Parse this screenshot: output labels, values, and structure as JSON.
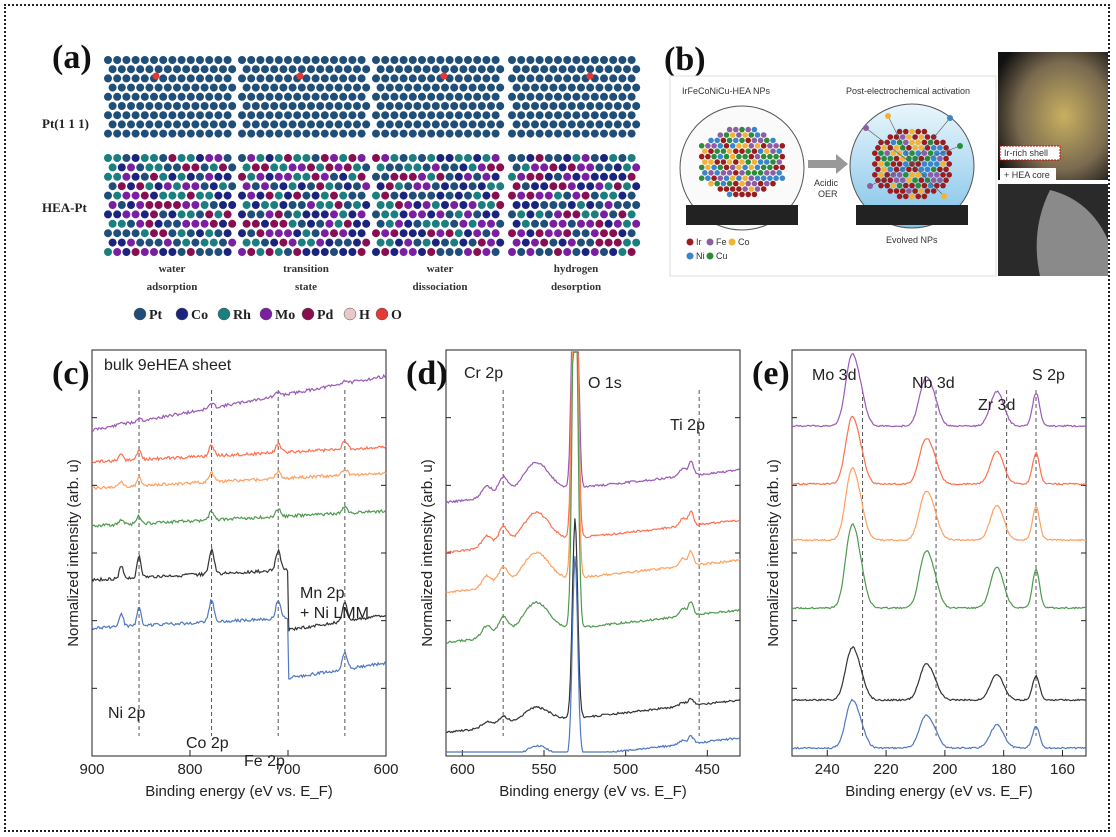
{
  "panel_a": {
    "tag": "(a)",
    "rows": [
      "Pt(1 1 1)",
      "HEA-Pt"
    ],
    "steps": [
      [
        "water",
        "adsorption"
      ],
      [
        "transition",
        "state"
      ],
      [
        "water",
        "dissociation"
      ],
      [
        "hydrogen",
        "desorption"
      ]
    ],
    "legend": [
      {
        "label": "Pt",
        "color": "#1f4e79"
      },
      {
        "label": "Co",
        "color": "#1a237e"
      },
      {
        "label": "Rh",
        "color": "#1b7f7f"
      },
      {
        "label": "Mo",
        "color": "#7b1fa2"
      },
      {
        "label": "Pd",
        "color": "#880e4f"
      },
      {
        "label": "H",
        "color": "#e8c8c8"
      },
      {
        "label": "O",
        "color": "#e53935"
      }
    ]
  },
  "panel_b": {
    "tag": "(b)",
    "left_title": "IrFeCoNiCu-HEA NPs",
    "right_title": "Post-electrochemical activation",
    "arrow_label_1": "Acidic",
    "arrow_label_2": "OER",
    "right_caption": "Evolved NPs",
    "element_legend": [
      {
        "label": "Ir",
        "color": "#9b1c1c"
      },
      {
        "label": "Fe",
        "color": "#8e5ea2"
      },
      {
        "label": "Co",
        "color": "#f2b233"
      },
      {
        "label": "Ni",
        "color": "#3a86c8"
      },
      {
        "label": "Cu",
        "color": "#2e8b3a"
      }
    ],
    "shell_label": "Ir-rich shell",
    "core_label": "+ HEA core"
  },
  "chart_data": [
    {
      "type": "line",
      "tag": "(c)",
      "title": "bulk 9eHEA sheet",
      "xlabel": "Binding energy (eV vs. E_F)",
      "ylabel": "Normalized intensity (arb. u)",
      "xlim": [
        900,
        600
      ],
      "xticks": [
        900,
        800,
        700,
        600
      ],
      "series_colors": [
        "#9b59b6",
        "#ff6f4f",
        "#ffa060",
        "#4f9a4f",
        "#333333",
        "#4f78c0"
      ],
      "annotations": [
        {
          "text": "Ni 2p",
          "x": 852
        },
        {
          "text": "Co 2p",
          "x": 778
        },
        {
          "text": "Fe 2p",
          "x": 710
        },
        {
          "text": "Mn 2p",
          "x": 642
        },
        {
          "text": "+ Ni LMM",
          "x": 642
        }
      ],
      "dashed_lines": [
        852,
        778,
        710,
        642
      ]
    },
    {
      "type": "line",
      "tag": "(d)",
      "xlabel": "Binding energy (eV vs. E_F)",
      "ylabel": "Normalized intensity (arb. u)",
      "xlim": [
        610,
        430
      ],
      "xticks": [
        600,
        550,
        500,
        450
      ],
      "series_colors": [
        "#9b59b6",
        "#ff6f4f",
        "#ffa060",
        "#4f9a4f",
        "#333333",
        "#4f78c0"
      ],
      "annotations": [
        {
          "text": "Cr 2p",
          "x": 575
        },
        {
          "text": "O 1s",
          "x": 531
        },
        {
          "text": "Ti 2p",
          "x": 455
        }
      ],
      "dashed_lines": [
        575,
        455
      ]
    },
    {
      "type": "line",
      "tag": "(e)",
      "xlabel": "Binding energy (eV vs. E_F)",
      "ylabel": "Normalized intensity (arb. u)",
      "xlim": [
        252,
        152
      ],
      "xticks": [
        240,
        220,
        200,
        180,
        160
      ],
      "series_colors": [
        "#9b59b6",
        "#ff6f4f",
        "#ffa060",
        "#4f9a4f",
        "#333333",
        "#4f78c0"
      ],
      "annotations": [
        {
          "text": "Mo 3d",
          "x": 228
        },
        {
          "text": "Nb 3d",
          "x": 203
        },
        {
          "text": "Zr 3d",
          "x": 179
        },
        {
          "text": "S 2p",
          "x": 169
        }
      ],
      "dashed_lines": [
        228,
        203,
        179,
        169
      ]
    }
  ]
}
